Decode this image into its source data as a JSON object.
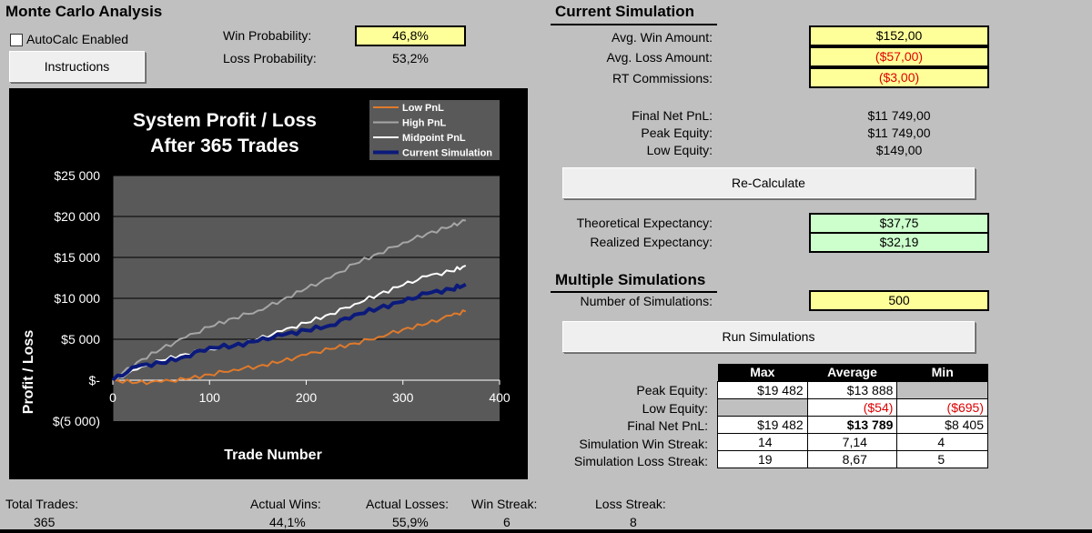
{
  "app": {
    "title": "Monte Carlo Analysis"
  },
  "autocalc": {
    "label": "AutoCalc Enabled",
    "checked": false
  },
  "instructions": {
    "label": "Instructions"
  },
  "probabilities": {
    "win_label": "Win Probability:",
    "win_value": "46,8%",
    "loss_label": "Loss Probability:",
    "loss_value": "53,2%"
  },
  "current_sim": {
    "title": "Current Simulation",
    "avg_win_label": "Avg. Win Amount:",
    "avg_win": "$152,00",
    "avg_loss_label": "Avg. Loss Amount:",
    "avg_loss": "($57,00)",
    "rt_comm_label": "RT Commissions:",
    "rt_comm": "($3,00)",
    "final_net_label": "Final Net PnL:",
    "final_net": "$11 749,00",
    "peak_equity_label": "Peak Equity:",
    "peak_equity": "$11 749,00",
    "low_equity_label": "Low Equity:",
    "low_equity": "$149,00",
    "recalc_label": "Re-Calculate",
    "theo_exp_label": "Theoretical Expectancy:",
    "theo_exp": "$37,75",
    "real_exp_label": "Realized Expectancy:",
    "real_exp": "$32,19"
  },
  "multi_sim": {
    "title": "Multiple Simulations",
    "num_label": "Number of Simulations:",
    "num_value": "500",
    "run_label": "Run Simulations",
    "headers": [
      "Max",
      "Average",
      "Min"
    ],
    "rows": [
      {
        "label": "Peak Equity:",
        "max": "$19 482",
        "avg": "$13 888",
        "min": ""
      },
      {
        "label": "Low Equity:",
        "max": "",
        "avg": "($54)",
        "min": "($695)"
      },
      {
        "label": "Final Net PnL:",
        "max": "$19 482",
        "avg": "$13 789",
        "min": "$8 405"
      },
      {
        "label": "Simulation Win Streak:",
        "max": "14",
        "avg": "7,14",
        "min": "4"
      },
      {
        "label": "Simulation Loss Streak:",
        "max": "19",
        "avg": "8,67",
        "min": "5"
      }
    ]
  },
  "footer": {
    "total_trades_label": "Total Trades:",
    "total_trades": "365",
    "actual_wins_label": "Actual Wins:",
    "actual_wins": "44,1%",
    "actual_losses_label": "Actual Losses:",
    "actual_losses": "55,9%",
    "win_streak_label": "Win Streak:",
    "win_streak": "6",
    "loss_streak_label": "Loss Streak:",
    "loss_streak": "8"
  },
  "colors": {
    "low": "#e07a2b",
    "high": "#a6a6a6",
    "mid": "#ffffff",
    "current": "#0b1a7a"
  },
  "chart_data": {
    "type": "line",
    "title": "System Profit / Loss",
    "subtitle": "After 365 Trades",
    "xlabel": "Trade Number",
    "ylabel": "Profit / Loss",
    "xlim": [
      0,
      400
    ],
    "ylim": [
      -5000,
      25000
    ],
    "x_ticks": [
      0,
      100,
      200,
      300,
      400
    ],
    "y_ticks": [
      -5000,
      0,
      5000,
      10000,
      15000,
      20000,
      25000
    ],
    "y_tick_labels": [
      "$(5 000)",
      "$-",
      "$5 000",
      "$10 000",
      "$15 000",
      "$20 000",
      "$25 000"
    ],
    "legend_position": "top-right",
    "series": [
      {
        "name": "Low PnL",
        "color": "#e07a2b",
        "x": [
          0,
          25,
          50,
          75,
          100,
          125,
          150,
          175,
          200,
          225,
          250,
          275,
          300,
          325,
          350,
          365
        ],
        "y": [
          0,
          -300,
          -200,
          100,
          700,
          1300,
          1700,
          2300,
          3100,
          3800,
          4500,
          5300,
          6200,
          6900,
          7900,
          8400
        ]
      },
      {
        "name": "High PnL",
        "color": "#a6a6a6",
        "x": [
          0,
          25,
          50,
          75,
          100,
          125,
          150,
          175,
          200,
          225,
          250,
          275,
          300,
          325,
          350,
          365
        ],
        "y": [
          0,
          2200,
          3800,
          5200,
          6500,
          7600,
          8500,
          9800,
          11200,
          12500,
          14200,
          15500,
          16800,
          17900,
          18800,
          19500
        ]
      },
      {
        "name": "Midpoint PnL",
        "color": "#ffffff",
        "x": [
          0,
          25,
          50,
          75,
          100,
          125,
          150,
          175,
          200,
          225,
          250,
          275,
          300,
          325,
          350,
          365
        ],
        "y": [
          0,
          1300,
          2400,
          3200,
          3800,
          4200,
          5000,
          6000,
          7000,
          8100,
          9300,
          10500,
          11600,
          12700,
          13300,
          14000
        ]
      },
      {
        "name": "Current Simulation",
        "color": "#0b1a7a",
        "x": [
          0,
          25,
          50,
          75,
          100,
          125,
          150,
          175,
          200,
          225,
          250,
          275,
          300,
          325,
          350,
          365
        ],
        "y": [
          0,
          1700,
          2100,
          2900,
          4000,
          4200,
          4800,
          5500,
          6100,
          6700,
          8000,
          8800,
          9600,
          10600,
          11100,
          11700
        ]
      }
    ]
  }
}
